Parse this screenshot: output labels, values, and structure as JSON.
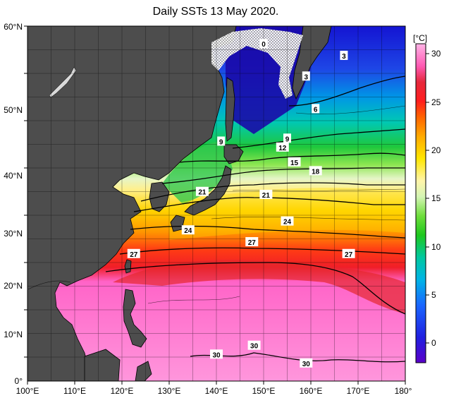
{
  "title": "Daily SSTs 13 May 2020.",
  "unit": "[°C]",
  "lon_ticks": [
    "100°E",
    "110°E",
    "120°E",
    "130°E",
    "140°E",
    "150°E",
    "160°E",
    "170°E",
    "180°"
  ],
  "lat_ticks": [
    "0°",
    "10°N",
    "20°N",
    "30°N",
    "40°N",
    "50°N",
    "60°N"
  ],
  "colorbar_ticks": [
    "0",
    "5",
    "10",
    "15",
    "20",
    "25",
    "30"
  ],
  "colors": {
    "land": "#4d4d4d",
    "ice": "#f2f2f2",
    "coast": "#000000"
  },
  "contour_labels": [
    {
      "text": "0",
      "lon": 150,
      "lat": 57
    },
    {
      "text": "3",
      "lon": 167,
      "lat": 55
    },
    {
      "text": "3",
      "lon": 159,
      "lat": 51.5
    },
    {
      "text": "6",
      "lon": 161,
      "lat": 46
    },
    {
      "text": "9",
      "lon": 141,
      "lat": 40.5
    },
    {
      "text": "9",
      "lon": 155,
      "lat": 41
    },
    {
      "text": "12",
      "lon": 154,
      "lat": 39.5
    },
    {
      "text": "15",
      "lon": 156.5,
      "lat": 37
    },
    {
      "text": "18",
      "lon": 161,
      "lat": 35.5
    },
    {
      "text": "21",
      "lon": 137,
      "lat": 32
    },
    {
      "text": "21",
      "lon": 150.5,
      "lat": 31.5
    },
    {
      "text": "24",
      "lon": 134,
      "lat": 25.5
    },
    {
      "text": "24",
      "lon": 155,
      "lat": 27
    },
    {
      "text": "27",
      "lon": 122.5,
      "lat": 21.5
    },
    {
      "text": "27",
      "lon": 147.5,
      "lat": 23.5
    },
    {
      "text": "27",
      "lon": 168,
      "lat": 21.5
    },
    {
      "text": "30",
      "lon": 140,
      "lat": 4.5
    },
    {
      "text": "30",
      "lon": 148,
      "lat": 6
    },
    {
      "text": "30",
      "lon": 159,
      "lat": 3
    }
  ]
}
